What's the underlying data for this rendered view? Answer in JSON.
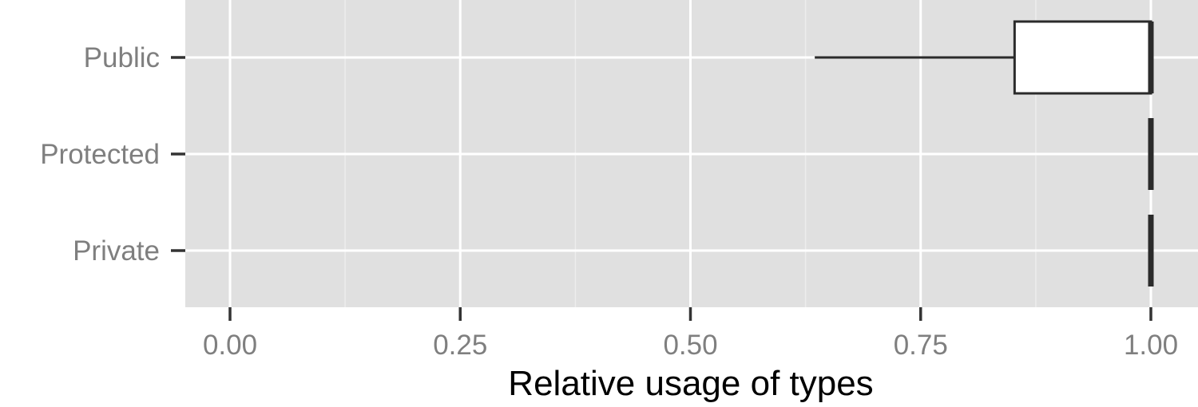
{
  "chart_data": {
    "type": "boxplot",
    "orientation": "horizontal",
    "title": "",
    "xlabel": "Relative usage of types",
    "ylabel": "",
    "xlim": [
      -0.05,
      1.05
    ],
    "x_ticks": [
      0,
      0.25,
      0.5,
      0.75,
      1.0
    ],
    "x_tick_labels": [
      "0.00",
      "0.25",
      "0.50",
      "0.75",
      "1.00"
    ],
    "x_minor_ticks": [
      0.125,
      0.375,
      0.625,
      0.875
    ],
    "categories": [
      "Private",
      "Protected",
      "Public"
    ],
    "boxes": [
      {
        "category": "Private",
        "whisker_low": 1.0,
        "q1": 1.0,
        "median": 1.0,
        "q3": 1.0,
        "whisker_high": 1.0
      },
      {
        "category": "Protected",
        "whisker_low": 1.0,
        "q1": 1.0,
        "median": 1.0,
        "q3": 1.0,
        "whisker_high": 1.0
      },
      {
        "category": "Public",
        "whisker_low": 0.635,
        "q1": 0.852,
        "median": 1.0,
        "q3": 1.0,
        "whisker_high": 1.0
      }
    ],
    "grid": true,
    "legend": "none",
    "colors": {
      "panel_background": "#e0e0e0",
      "grid_major": "#ffffff",
      "grid_minor": "#ededed",
      "box_fill": "#ffffff",
      "box_stroke": "#2b2b2b",
      "tick_label": "#7f7f7f",
      "axis_title": "#000000"
    }
  }
}
